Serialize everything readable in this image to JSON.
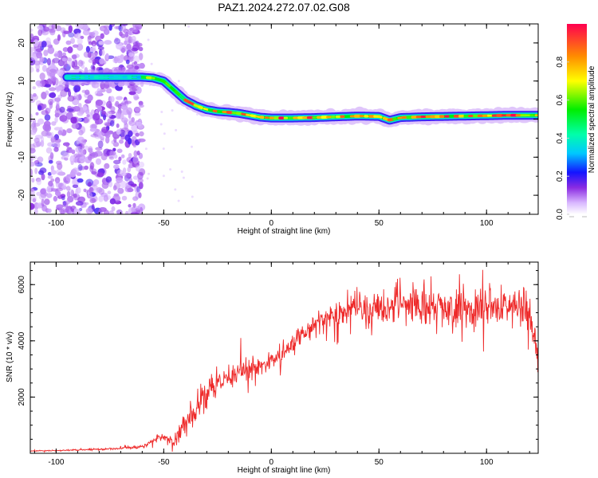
{
  "figure": {
    "title": "PAZ1.2024.272.07.02.G08"
  },
  "chart_data": [
    {
      "type": "heatmap",
      "title": "PAZ1.2024.272.07.02.G08",
      "xlabel": "Height of straight line (km)",
      "ylabel": "Frequency (Hz)",
      "xlim": [
        -112,
        124
      ],
      "ylim": [
        -25,
        25
      ],
      "x_ticks": [
        -100,
        -50,
        0,
        50,
        100
      ],
      "y_ticks": [
        -20,
        -10,
        0,
        10,
        20
      ],
      "grid": false,
      "ridge": {
        "x": [
          -95,
          -90,
          -80,
          -70,
          -66,
          -60,
          -55,
          -50,
          -45,
          -40,
          -35,
          -30,
          -25,
          -20,
          -15,
          -10,
          -5,
          0,
          10,
          20,
          30,
          40,
          50,
          55,
          60,
          70,
          80,
          90,
          100,
          110,
          120,
          124
        ],
        "y": [
          11,
          11,
          11,
          11,
          11,
          11,
          10.8,
          10,
          7.5,
          5,
          3.5,
          2.5,
          2,
          1.8,
          1.5,
          1,
          0.5,
          0.3,
          0.3,
          0.4,
          0.6,
          0.8,
          0.7,
          -0.3,
          0.4,
          0.6,
          0.7,
          0.8,
          0.9,
          1,
          1,
          1
        ]
      },
      "noise_x_range": [
        -112,
        -60
      ],
      "colorbar": {
        "label": "Normalized spectral amplitude",
        "ticks": [
          "0.0",
          "0.2",
          "0.4",
          "0.6",
          "0.8"
        ],
        "tick_values": [
          0,
          0.2,
          0.4,
          0.6,
          0.8
        ],
        "range": [
          0,
          1
        ]
      }
    },
    {
      "type": "line",
      "xlabel": "Height of straight line (km)",
      "ylabel": "SNR (10 * v/v)",
      "xlim": [
        -112,
        124
      ],
      "ylim": [
        0,
        6800
      ],
      "x_ticks": [
        -100,
        -50,
        0,
        50,
        100
      ],
      "y_ticks": [
        2000,
        4000,
        6000
      ],
      "grid": false,
      "series": [
        {
          "color": "#ee2a2a",
          "x": [
            -112,
            -100,
            -80,
            -65,
            -58,
            -55,
            -52,
            -48,
            -45,
            -40,
            -35,
            -30,
            -25,
            -20,
            -15,
            -10,
            -5,
            0,
            5,
            10,
            15,
            20,
            25,
            30,
            40,
            50,
            60,
            70,
            80,
            90,
            100,
            110,
            120,
            124
          ],
          "values": [
            80,
            100,
            140,
            200,
            280,
            450,
            580,
            550,
            400,
            1100,
            1600,
            2100,
            2500,
            2700,
            2850,
            3000,
            3150,
            3300,
            3550,
            3900,
            4250,
            4550,
            4800,
            5000,
            5150,
            5200,
            5200,
            5200,
            5200,
            5200,
            5200,
            5150,
            5150,
            3600
          ],
          "noise_amplitude": [
            10,
            20,
            30,
            50,
            60,
            80,
            120,
            120,
            150,
            400,
            450,
            500,
            500,
            450,
            420,
            380,
            350,
            320,
            320,
            330,
            350,
            380,
            400,
            420,
            500,
            600,
            650,
            650,
            650,
            650,
            650,
            650,
            650,
            650
          ]
        }
      ]
    }
  ]
}
